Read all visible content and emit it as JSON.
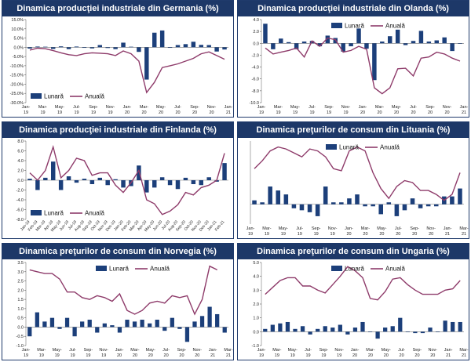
{
  "colors": {
    "bar": "#1c3f7a",
    "line": "#8e3b6a",
    "header": "#1d3868",
    "grid": "#9a9a9a"
  },
  "chart_data": [
    {
      "id": "de",
      "type": "bar+line",
      "title": "Dinamica producţiei industriale din Germania (%)",
      "legend": [
        "Lunară",
        "Anuală"
      ],
      "legend_pos": "bottom-left",
      "ylim": [
        -30,
        15
      ],
      "yticks": [
        "15.0%",
        "10.0%",
        "5.0%",
        "0.0%",
        "-5.0%",
        "-10.0%",
        "-15.0%",
        "-20.0%",
        "-25.0%",
        "-30.0%"
      ],
      "ytick_values": [
        15,
        10,
        5,
        0,
        -5,
        -10,
        -15,
        -20,
        -25,
        -30
      ],
      "xticks": [
        [
          "Jan-",
          "19"
        ],
        [
          "Mar-",
          "19"
        ],
        [
          "May-",
          "19"
        ],
        [
          "Jul-",
          "19"
        ],
        [
          "Sep-",
          "19"
        ],
        [
          "Nov-",
          "19"
        ],
        [
          "Jan-",
          "20"
        ],
        [
          "Mar-",
          "20"
        ],
        [
          "May-",
          "20"
        ],
        [
          "Jul-",
          "20"
        ],
        [
          "Sep-",
          "20"
        ],
        [
          "Nov-",
          "20"
        ],
        [
          "Jan-",
          "21"
        ]
      ],
      "monthly": [
        -0.7,
        0.4,
        0.3,
        -0.9,
        0.5,
        -1.0,
        0.4,
        -0.3,
        -0.6,
        1.2,
        -0.4,
        -1.0,
        2.5,
        0.3,
        -2.5,
        -17.5,
        7.9,
        9.1,
        -0.3,
        1.2,
        1.7,
        3.0,
        1.3,
        1.2,
        -2.3,
        -1.2
      ],
      "annual": [
        -1.5,
        -0.5,
        -0.8,
        -1.8,
        -3.0,
        -4.0,
        -4.5,
        -3.5,
        -3.0,
        -3.2,
        -3.5,
        -4.5,
        -2.0,
        -3.5,
        -7.5,
        -24.5,
        -19.0,
        -11.0,
        -10.0,
        -9.0,
        -7.5,
        -6.0,
        -3.5,
        -2.5,
        -4.5,
        -6.5
      ]
    },
    {
      "id": "nl",
      "type": "bar+line",
      "title": "Dinamica producţiei industriale din Olanda (%)",
      "legend": [
        "Lunară",
        "Anuală"
      ],
      "legend_pos": "top-center",
      "ylim": [
        -10,
        4
      ],
      "yticks": [
        "4.0",
        "2.0",
        "0.0",
        "-2.0",
        "-4.0",
        "-6.0",
        "-8.0",
        "-10.0"
      ],
      "ytick_values": [
        4,
        2,
        0,
        -2,
        -4,
        -6,
        -8,
        -10
      ],
      "xticks": [
        [
          "Jan-",
          "19"
        ],
        [
          "Mar-",
          "19"
        ],
        [
          "May-",
          "19"
        ],
        [
          "Jul-",
          "19"
        ],
        [
          "Sep-",
          "19"
        ],
        [
          "Nov-",
          "19"
        ],
        [
          "Jan-",
          "20"
        ],
        [
          "Mar-",
          "20"
        ],
        [
          "May-",
          "20"
        ],
        [
          "Jul-",
          "20"
        ],
        [
          "Sep-",
          "20"
        ],
        [
          "Nov-",
          "20"
        ],
        [
          "Jan-",
          "21"
        ]
      ],
      "monthly": [
        3.3,
        -1.0,
        0.8,
        0.2,
        -1.0,
        0.3,
        0.4,
        -0.5,
        1.3,
        0.9,
        -1.4,
        -0.5,
        2.5,
        -0.9,
        -6.2,
        0.3,
        1.2,
        2.3,
        -0.3,
        0.4,
        2.1,
        0.3,
        0.5,
        1.0,
        -1.3,
        0
      ],
      "annual": [
        -0.8,
        -1.8,
        -1.5,
        -1.2,
        -0.8,
        -2.3,
        0.4,
        -0.5,
        0.9,
        0.6,
        -1.5,
        -1.2,
        -0.5,
        -1.0,
        -7.5,
        -8.5,
        -7.5,
        -4.3,
        -4.2,
        -5.5,
        -2.5,
        -2.3,
        -1.5,
        -1.8,
        -2.5,
        -3.0
      ]
    },
    {
      "id": "fi",
      "type": "bar+line",
      "title": "Dinamica producţiei industriale din Finlanda (%)",
      "legend": [
        "Lunară",
        "Anuală"
      ],
      "legend_pos": "bottom-left",
      "ylim": [
        -8,
        8
      ],
      "yticks": [
        "8.0",
        "6.0",
        "4.0",
        "2.0",
        "0.0",
        "-2.0",
        "-4.0",
        "-6.0",
        "-8.0"
      ],
      "ytick_values": [
        8,
        6,
        4,
        2,
        0,
        -2,
        -4,
        -6,
        -8
      ],
      "xticks": [
        [
          "Jan-19"
        ],
        [
          "Feb-19"
        ],
        [
          "Mar-19"
        ],
        [
          "Apr-19"
        ],
        [
          "May-19"
        ],
        [
          "Jun-19"
        ],
        [
          "Jul-19"
        ],
        [
          "Aug-19"
        ],
        [
          "Sep-19"
        ],
        [
          "Oct-19"
        ],
        [
          "Nov-19"
        ],
        [
          "Dec-19"
        ],
        [
          "Jan-20"
        ],
        [
          "Feb-20"
        ],
        [
          "Mar-20"
        ],
        [
          "Apr-20"
        ],
        [
          "May-20"
        ],
        [
          "Jun-20"
        ],
        [
          "Jul-20"
        ],
        [
          "Aug-20"
        ],
        [
          "Sep-20"
        ],
        [
          "Oct-20"
        ],
        [
          "Nov-20"
        ],
        [
          "Dec-20"
        ],
        [
          "Jan-21"
        ],
        [
          "Feb-21"
        ]
      ],
      "monthly": [
        0.3,
        -2.0,
        0.5,
        3.8,
        -2.0,
        0.8,
        -0.5,
        0.3,
        -0.8,
        0.5,
        -1.0,
        0.2,
        -1.5,
        -1.2,
        3.0,
        -2.5,
        -1.5,
        0.6,
        -1.0,
        -1.8,
        0.5,
        -0.8,
        -1.0,
        0.6,
        -0.3,
        3.5
      ],
      "annual": [
        1.5,
        0,
        2.0,
        6.8,
        0.5,
        2.0,
        4.5,
        4.0,
        1.0,
        1.5,
        1.5,
        -1.0,
        -2.5,
        -0.5,
        2.0,
        -4.0,
        -4.8,
        -7.0,
        -6.3,
        -5.0,
        -2.5,
        -3.0,
        -1.5,
        -1.0,
        0,
        5.5
      ]
    },
    {
      "id": "lt",
      "type": "bar+line",
      "title": "Dinamica preţurilor de consum din Lituania (%)",
      "legend": [
        "Lunară",
        "Anuală"
      ],
      "legend_pos": "top-center",
      "ylim": [
        -1,
        3.2
      ],
      "yticks": [],
      "ytick_values": [],
      "xticks": [
        [
          "Jan-",
          "19"
        ],
        [
          "Mar-",
          "19"
        ],
        [
          "May-",
          "19"
        ],
        [
          "Jul-",
          "19"
        ],
        [
          "Sep-",
          "19"
        ],
        [
          "Nov-",
          "19"
        ],
        [
          "Jan-",
          "20"
        ],
        [
          "Mar-",
          "20"
        ],
        [
          "May-",
          "20"
        ],
        [
          "Jul-",
          "20"
        ],
        [
          "Sep-",
          "20"
        ],
        [
          "Nov-",
          "20"
        ],
        [
          "Jan-",
          "21"
        ],
        [
          "Mar-",
          "21"
        ]
      ],
      "monthly": [
        0.2,
        0.1,
        0.9,
        0.7,
        0.5,
        -0.2,
        -0.3,
        -0.4,
        -0.6,
        0.9,
        0.1,
        0.1,
        0.3,
        0.5,
        -0.1,
        -0.1,
        -0.5,
        0.1,
        -0.6,
        -0.3,
        0.3,
        -0.2,
        -0.1,
        -0.1,
        0.4,
        0.4,
        0.8
      ],
      "annual": [
        1.8,
        2.2,
        2.7,
        2.9,
        2.8,
        2.6,
        2.4,
        2.8,
        2.7,
        2.4,
        1.8,
        1.7,
        2.7,
        2.9,
        2.7,
        1.6,
        0.8,
        0.3,
        0.9,
        1.2,
        1.1,
        0.7,
        0.7,
        0.5,
        0.2,
        0.5,
        1.6
      ]
    },
    {
      "id": "no",
      "type": "bar+line",
      "title": "Dinamica preţurilor de consum din Norvegia (%)",
      "legend": [
        "Lunară",
        "Anuală"
      ],
      "legend_pos": "top-center",
      "ylim": [
        -1,
        3.5
      ],
      "yticks": [
        "3.5",
        "3.0",
        "2.5",
        "2.0",
        "1.5",
        "1.0",
        "0.5",
        "0.0",
        "-0.5",
        "-1.0"
      ],
      "ytick_values": [
        3.5,
        3.0,
        2.5,
        2.0,
        1.5,
        1.0,
        0.5,
        0,
        -0.5,
        -1.0
      ],
      "xticks": [
        [
          "Jan-",
          "19"
        ],
        [
          "Mar-",
          "19"
        ],
        [
          "May-",
          "19"
        ],
        [
          "Jul-",
          "19"
        ],
        [
          "Sep-",
          "19"
        ],
        [
          "Nov-",
          "19"
        ],
        [
          "Jan-",
          "20"
        ],
        [
          "Mar-",
          "20"
        ],
        [
          "May-",
          "20"
        ],
        [
          "Jul-",
          "20"
        ],
        [
          "Sep-",
          "20"
        ],
        [
          "Nov-",
          "20"
        ],
        [
          "Jan-",
          "21"
        ],
        [
          "Mar-",
          "21"
        ]
      ],
      "monthly": [
        -0.5,
        0.8,
        0.3,
        0.5,
        -0.1,
        0.5,
        -0.5,
        0.3,
        0.4,
        -0.3,
        0.2,
        0.1,
        -0.3,
        0.4,
        0.3,
        0.4,
        0.2,
        0.4,
        -0.2,
        0.5,
        -0.1,
        -0.8,
        0.3,
        0.6,
        1.1,
        0.7,
        -0.3
      ],
      "annual": [
        3.1,
        3.0,
        2.9,
        2.9,
        2.6,
        1.9,
        1.9,
        1.6,
        1.5,
        1.7,
        1.6,
        1.4,
        1.8,
        0.9,
        0.7,
        0.9,
        1.3,
        1.4,
        1.3,
        1.7,
        1.6,
        1.7,
        0.7,
        1.5,
        3.3,
        3.1,
        null
      ]
    },
    {
      "id": "hu",
      "type": "bar+line",
      "title": "Dinamica preţurilor de consum din Ungaria (%)",
      "legend": [
        "Lunară",
        "Anuală"
      ],
      "legend_pos": "top-center",
      "ylim": [
        -1,
        5
      ],
      "yticks": [
        "5.0",
        "4.0",
        "3.0",
        "2.0",
        "1.0",
        "0.0",
        "-1.0"
      ],
      "ytick_values": [
        5,
        4,
        3,
        2,
        1,
        0,
        -1
      ],
      "xticks": [
        [
          "Jan-",
          "19"
        ],
        [
          "Mar-",
          "19"
        ],
        [
          "May-",
          "19"
        ],
        [
          "Jul-",
          "19"
        ],
        [
          "Sep-",
          "19"
        ],
        [
          "Nov-",
          "19"
        ],
        [
          "Jan-",
          "20"
        ],
        [
          "Mar-",
          "20"
        ],
        [
          "May-",
          "20"
        ],
        [
          "Jul-",
          "20"
        ],
        [
          "Sep-",
          "20"
        ],
        [
          "Nov-",
          "20"
        ],
        [
          "Jan-",
          "21"
        ],
        [
          "Mar-",
          "21"
        ]
      ],
      "monthly": [
        0.2,
        0.5,
        0.6,
        0.7,
        0.2,
        0.4,
        -0.2,
        0.2,
        0.4,
        0.3,
        0.5,
        -0.2,
        0.3,
        0.7,
        0,
        -0.5,
        0.3,
        0.4,
        1.0,
        0,
        -0.1,
        -0.1,
        0.3,
        0,
        0.8,
        0.7,
        0.7
      ],
      "annual": [
        2.7,
        3.2,
        3.7,
        3.9,
        3.9,
        3.3,
        3.3,
        3.0,
        2.8,
        3.4,
        4.0,
        4.7,
        4.4,
        3.9,
        2.4,
        2.3,
        2.9,
        3.8,
        3.9,
        3.4,
        3.0,
        2.7,
        2.7,
        2.7,
        3.0,
        3.1,
        3.7
      ]
    }
  ]
}
